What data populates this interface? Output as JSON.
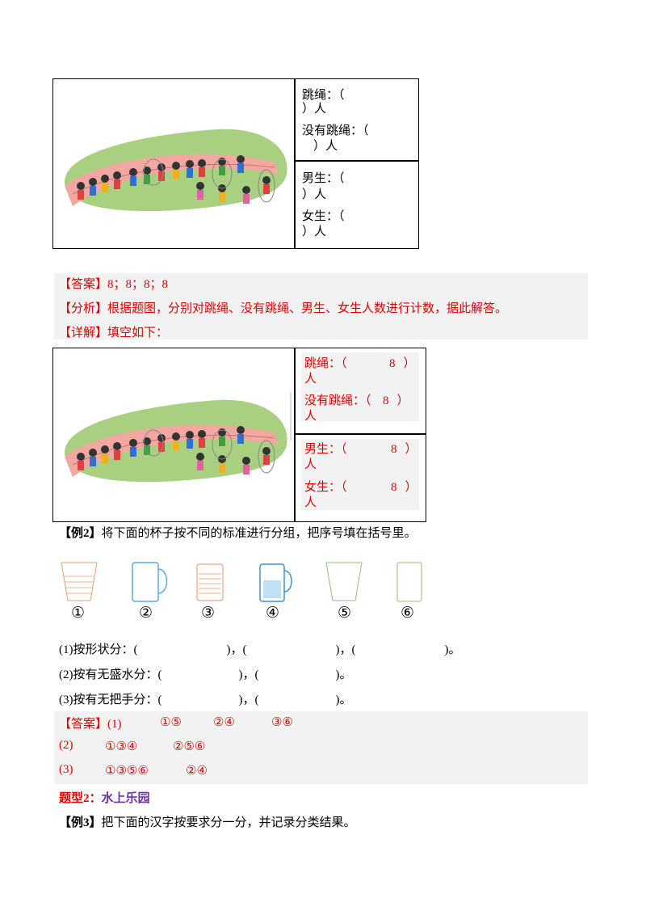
{
  "table1": {
    "cells": [
      [
        "跳绳：（",
        "）人",
        "没有跳绳：（",
        "）人"
      ],
      [
        "男生：（",
        "）人",
        "女生：（",
        "）人"
      ]
    ]
  },
  "answer1": {
    "lines": [
      "【答案】8；8；8；8",
      "【分析】根据题图，分别对跳绳、没有跳绳、男生、女生人数进行计数，据此解答。",
      "【详解】填空如下："
    ]
  },
  "table2": {
    "cells": [
      [
        {
          "label": "跳绳：（",
          "value": 8,
          "close": "）",
          "unit": "人"
        },
        {
          "label": "没有跳绳：（",
          "value": 8,
          "close": "）",
          "unit": "人"
        }
      ],
      [
        {
          "label": "男生：（",
          "value": 8,
          "close": "）",
          "unit": "人"
        },
        {
          "label": "女生：（",
          "value": 8,
          "close": "）",
          "unit": "人"
        }
      ]
    ]
  },
  "example2": {
    "tag": "【例2】",
    "prompt": "将下面的杯子按不同的标准进行分组，把序号填在括号里。",
    "cup_labels": [
      "①",
      "②",
      "③",
      "④",
      "⑤",
      "⑥"
    ],
    "questions": [
      [
        "(1)按形状分：(",
        ")，(",
        ")，(",
        ")。"
      ],
      [
        "(2)按有无盛水分：(",
        ")，(",
        ")。"
      ],
      [
        "(3)按有无把手分：(",
        ")，(",
        ")。"
      ]
    ]
  },
  "answer2": {
    "lines": [
      [
        "【答案】(1)",
        "①⑤",
        "②④",
        "③⑥"
      ],
      [
        "(2)",
        "①③④",
        "②⑤⑥"
      ],
      [
        "(3)",
        "①③⑤⑥",
        "②④"
      ]
    ]
  },
  "section": {
    "label": "题型2：",
    "title": "水上乐园"
  },
  "example3": {
    "tag": "【例3】",
    "prompt": "把下面的汉字按要求分一分，并记录分类结果。"
  }
}
